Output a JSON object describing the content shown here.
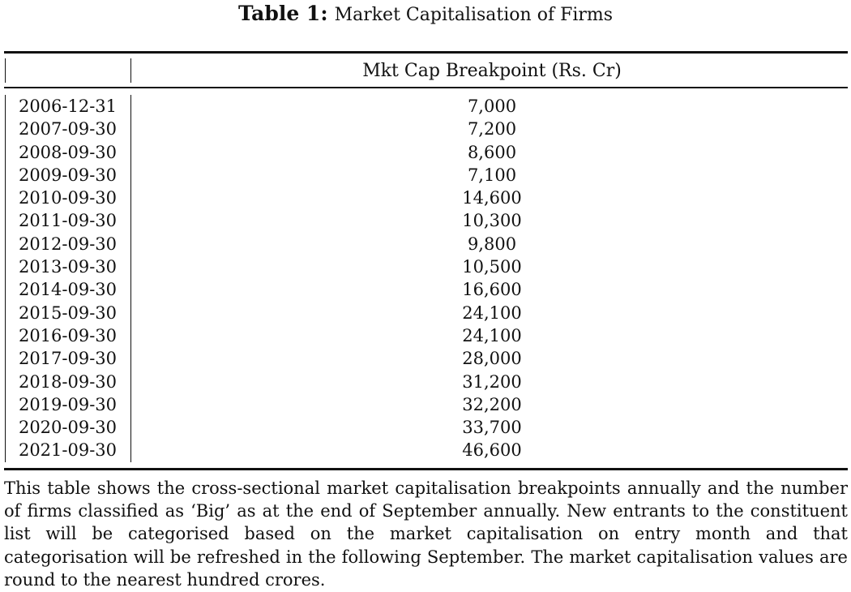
{
  "caption": {
    "label": "Table 1:",
    "text": "Market Capitalisation of Firms"
  },
  "table": {
    "header_left": "",
    "header_right": "Mkt Cap Breakpoint (Rs. Cr)",
    "rows": [
      {
        "date": "2006-12-31",
        "value": "7,000"
      },
      {
        "date": "2007-09-30",
        "value": "7,200"
      },
      {
        "date": "2008-09-30",
        "value": "8,600"
      },
      {
        "date": "2009-09-30",
        "value": "7,100"
      },
      {
        "date": "2010-09-30",
        "value": "14,600"
      },
      {
        "date": "2011-09-30",
        "value": "10,300"
      },
      {
        "date": "2012-09-30",
        "value": "9,800"
      },
      {
        "date": "2013-09-30",
        "value": "10,500"
      },
      {
        "date": "2014-09-30",
        "value": "16,600"
      },
      {
        "date": "2015-09-30",
        "value": "24,100"
      },
      {
        "date": "2016-09-30",
        "value": "24,100"
      },
      {
        "date": "2017-09-30",
        "value": "28,000"
      },
      {
        "date": "2018-09-30",
        "value": "31,200"
      },
      {
        "date": "2019-09-30",
        "value": "32,200"
      },
      {
        "date": "2020-09-30",
        "value": "33,700"
      },
      {
        "date": "2021-09-30",
        "value": "46,600"
      }
    ]
  },
  "note": "This table shows the cross-sectional market capitalisation breakpoints annually and the number of firms classified as ‘Big’ as at the end of September annually. New entrants to the constituent list will be categorised based on the market capitalisation on entry month and that categorisation will be refreshed in the following September. The market capitalisation values are round to the nearest hundred crores."
}
